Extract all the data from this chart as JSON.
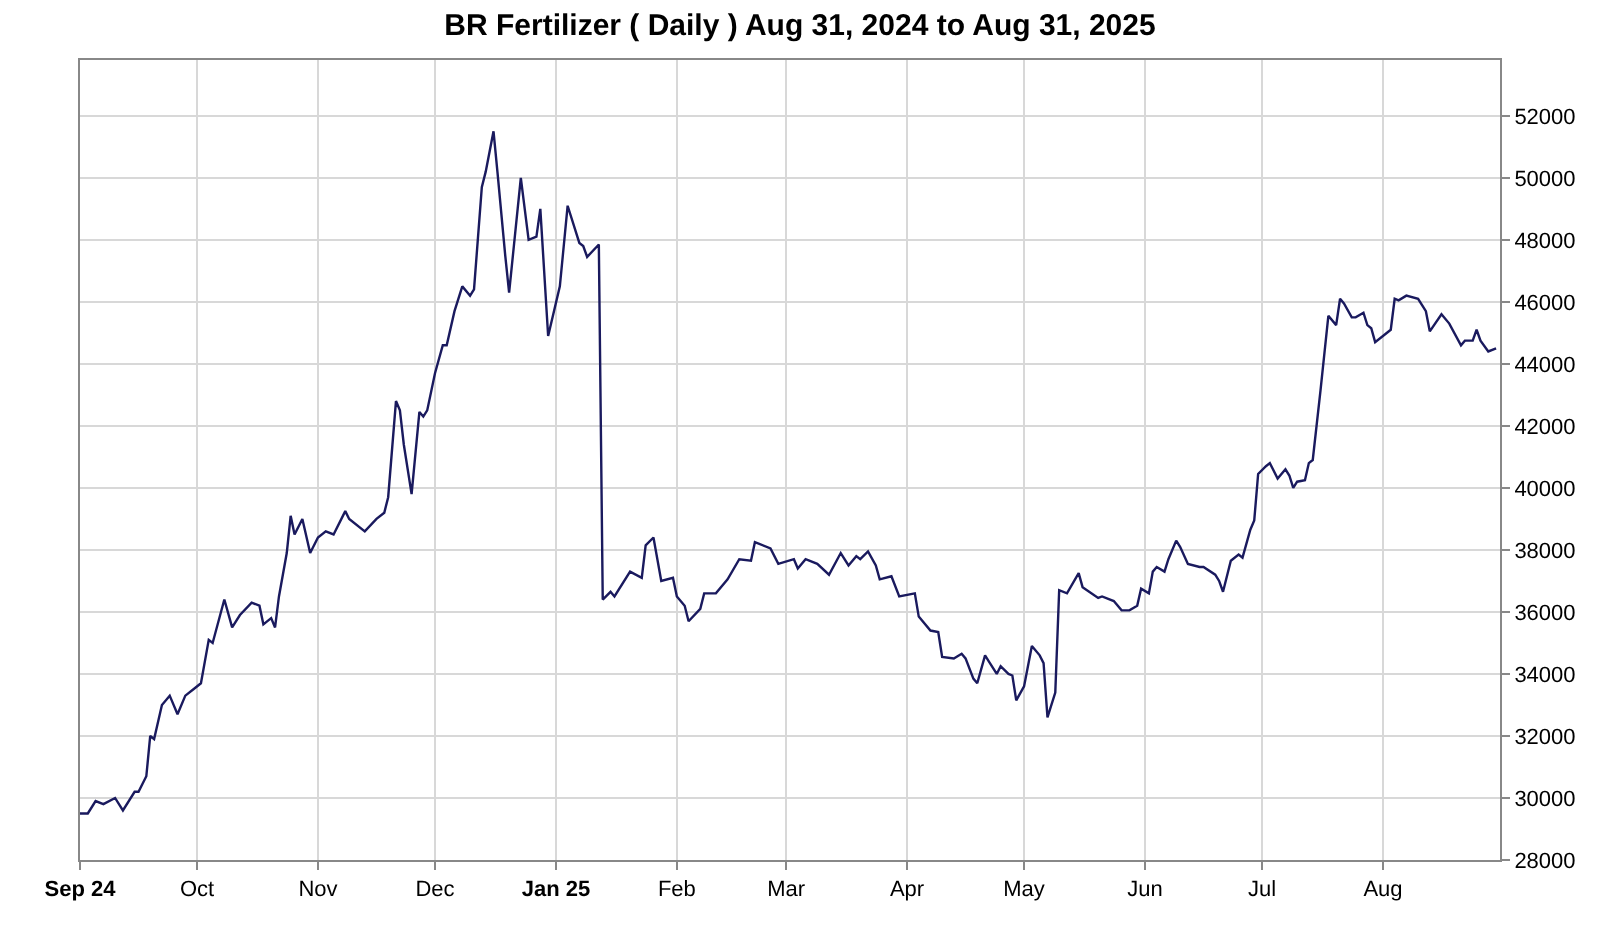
{
  "chart_data": {
    "type": "line",
    "title": "BR Fertilizer ( Daily ) Aug 31, 2024 to Aug 31, 2025",
    "xlim": [
      "2024-09-01",
      "2025-08-31"
    ],
    "xticks": [
      {
        "value": "2024-09-01",
        "label": "Sep 24"
      },
      {
        "value": "2024-10-01",
        "label": "Oct"
      },
      {
        "value": "2024-11-01",
        "label": "Nov"
      },
      {
        "value": "2024-12-01",
        "label": "Dec"
      },
      {
        "value": "2025-01-01",
        "label": "Jan 25"
      },
      {
        "value": "2025-02-01",
        "label": "Feb"
      },
      {
        "value": "2025-03-01",
        "label": "Mar"
      },
      {
        "value": "2025-04-01",
        "label": "Apr"
      },
      {
        "value": "2025-05-01",
        "label": "May"
      },
      {
        "value": "2025-06-01",
        "label": "Jun"
      },
      {
        "value": "2025-07-01",
        "label": "Jul"
      },
      {
        "value": "2025-08-01",
        "label": "Aug"
      }
    ],
    "ylim": [
      28000,
      53800
    ],
    "yticks": [
      28000,
      30000,
      32000,
      34000,
      36000,
      38000,
      40000,
      42000,
      44000,
      46000,
      48000,
      50000,
      52000
    ],
    "grid": true,
    "marker": "none",
    "line_style": "solid",
    "series": [
      {
        "color": "#1a1a5e",
        "x": [
          "2024-09-01",
          "2024-09-03",
          "2024-09-05",
          "2024-09-07",
          "2024-09-10",
          "2024-09-12",
          "2024-09-15",
          "2024-09-16",
          "2024-09-18",
          "2024-09-19",
          "2024-09-20",
          "2024-09-22",
          "2024-09-24",
          "2024-09-26",
          "2024-09-28",
          "2024-09-30",
          "2024-10-02",
          "2024-10-04",
          "2024-10-05",
          "2024-10-08",
          "2024-10-10",
          "2024-10-12",
          "2024-10-15",
          "2024-10-17",
          "2024-10-18",
          "2024-10-20",
          "2024-10-21",
          "2024-10-22",
          "2024-10-24",
          "2024-10-25",
          "2024-10-26",
          "2024-10-28",
          "2024-10-30",
          "2024-11-01",
          "2024-11-03",
          "2024-11-05",
          "2024-11-08",
          "2024-11-09",
          "2024-11-13",
          "2024-11-16",
          "2024-11-18",
          "2024-11-19",
          "2024-11-21",
          "2024-11-22",
          "2024-11-23",
          "2024-11-25",
          "2024-11-27",
          "2024-11-28",
          "2024-11-29",
          "2024-12-01",
          "2024-12-03",
          "2024-12-04",
          "2024-12-06",
          "2024-12-08",
          "2024-12-10",
          "2024-12-11",
          "2024-12-13",
          "2024-12-14",
          "2024-12-16",
          "2024-12-17",
          "2024-12-19",
          "2024-12-20",
          "2024-12-23",
          "2024-12-25",
          "2024-12-27",
          "2024-12-28",
          "2024-12-30",
          "2025-01-02",
          "2025-01-04",
          "2025-01-07",
          "2025-01-08",
          "2025-01-09",
          "2025-01-12",
          "2025-01-13",
          "2025-01-15",
          "2025-01-16",
          "2025-01-20",
          "2025-01-23",
          "2025-01-24",
          "2025-01-26",
          "2025-01-28",
          "2025-01-31",
          "2025-02-01",
          "2025-02-03",
          "2025-02-04",
          "2025-02-07",
          "2025-02-08",
          "2025-02-11",
          "2025-02-14",
          "2025-02-17",
          "2025-02-20",
          "2025-02-21",
          "2025-02-25",
          "2025-02-27",
          "2025-03-03",
          "2025-03-04",
          "2025-03-06",
          "2025-03-09",
          "2025-03-12",
          "2025-03-15",
          "2025-03-17",
          "2025-03-19",
          "2025-03-20",
          "2025-03-22",
          "2025-03-24",
          "2025-03-25",
          "2025-03-28",
          "2025-03-30",
          "2025-04-03",
          "2025-04-04",
          "2025-04-07",
          "2025-04-09",
          "2025-04-10",
          "2025-04-13",
          "2025-04-15",
          "2025-04-16",
          "2025-04-18",
          "2025-04-19",
          "2025-04-21",
          "2025-04-22",
          "2025-04-24",
          "2025-04-25",
          "2025-04-27",
          "2025-04-28",
          "2025-04-29",
          "2025-05-01",
          "2025-05-03",
          "2025-05-05",
          "2025-05-06",
          "2025-05-07",
          "2025-05-09",
          "2025-05-10",
          "2025-05-12",
          "2025-05-15",
          "2025-05-16",
          "2025-05-20",
          "2025-05-21",
          "2025-05-24",
          "2025-05-26",
          "2025-05-28",
          "2025-05-30",
          "2025-05-31",
          "2025-06-02",
          "2025-06-03",
          "2025-06-04",
          "2025-06-06",
          "2025-06-07",
          "2025-06-09",
          "2025-06-10",
          "2025-06-12",
          "2025-06-15",
          "2025-06-16",
          "2025-06-19",
          "2025-06-20",
          "2025-06-21",
          "2025-06-23",
          "2025-06-25",
          "2025-06-26",
          "2025-06-28",
          "2025-06-29",
          "2025-06-30",
          "2025-07-02",
          "2025-07-03",
          "2025-07-05",
          "2025-07-07",
          "2025-07-08",
          "2025-07-09",
          "2025-07-10",
          "2025-07-12",
          "2025-07-13",
          "2025-07-14",
          "2025-07-16",
          "2025-07-18",
          "2025-07-20",
          "2025-07-21",
          "2025-07-22",
          "2025-07-24",
          "2025-07-25",
          "2025-07-27",
          "2025-07-28",
          "2025-07-29",
          "2025-07-30",
          "2025-08-03",
          "2025-08-04",
          "2025-08-05",
          "2025-08-07",
          "2025-08-10",
          "2025-08-12",
          "2025-08-13",
          "2025-08-16",
          "2025-08-18",
          "2025-08-21",
          "2025-08-22",
          "2025-08-24",
          "2025-08-25",
          "2025-08-26",
          "2025-08-28",
          "2025-08-30"
        ],
        "values": [
          29500,
          29500,
          29900,
          29800,
          30000,
          29600,
          30200,
          30200,
          30700,
          32000,
          31900,
          33000,
          33300,
          32700,
          33300,
          33500,
          33700,
          35100,
          35000,
          36400,
          35500,
          35900,
          36300,
          36200,
          35600,
          35800,
          35500,
          36500,
          37900,
          39100,
          38500,
          39000,
          37900,
          38400,
          38600,
          38500,
          39250,
          39000,
          38600,
          39000,
          39200,
          39700,
          42800,
          42500,
          41400,
          39800,
          42450,
          42300,
          42500,
          43700,
          44600,
          44600,
          45700,
          46500,
          46200,
          46400,
          49700,
          50200,
          51500,
          50200,
          47500,
          46300,
          50000,
          48000,
          48100,
          49000,
          44900,
          46500,
          49100,
          47900,
          47800,
          47450,
          47850,
          36400,
          36650,
          36500,
          37300,
          37100,
          38150,
          38400,
          37000,
          37100,
          36500,
          36200,
          35700,
          36100,
          36600,
          36600,
          37050,
          37700,
          37650,
          38250,
          38050,
          37550,
          37700,
          37400,
          37700,
          37550,
          37200,
          37900,
          37500,
          37800,
          37700,
          37950,
          37500,
          37050,
          37150,
          36500,
          36600,
          35850,
          35400,
          35350,
          34550,
          34500,
          34650,
          34500,
          33850,
          33700,
          34600,
          34400,
          34000,
          34250,
          34000,
          33950,
          33150,
          33600,
          34900,
          34600,
          34350,
          32600,
          33400,
          36700,
          36600,
          37250,
          36800,
          36450,
          36500,
          36350,
          36050,
          36050,
          36200,
          36750,
          36600,
          37300,
          37450,
          37300,
          37700,
          38300,
          38100,
          37550,
          37450,
          37450,
          37200,
          37000,
          36650,
          37650,
          37850,
          37750,
          38650,
          38950,
          40450,
          40700,
          40800,
          40300,
          40600,
          40400,
          40000,
          40200,
          40250,
          40800,
          40900,
          43150,
          45550,
          45250,
          46100,
          45950,
          45500,
          45500,
          45650,
          45250,
          45150,
          44700,
          45100,
          46100,
          46050,
          46200,
          46100,
          45700,
          45050,
          45600,
          45300,
          44600,
          44750,
          44750,
          45100,
          44750,
          44400,
          44500
        ]
      }
    ]
  }
}
